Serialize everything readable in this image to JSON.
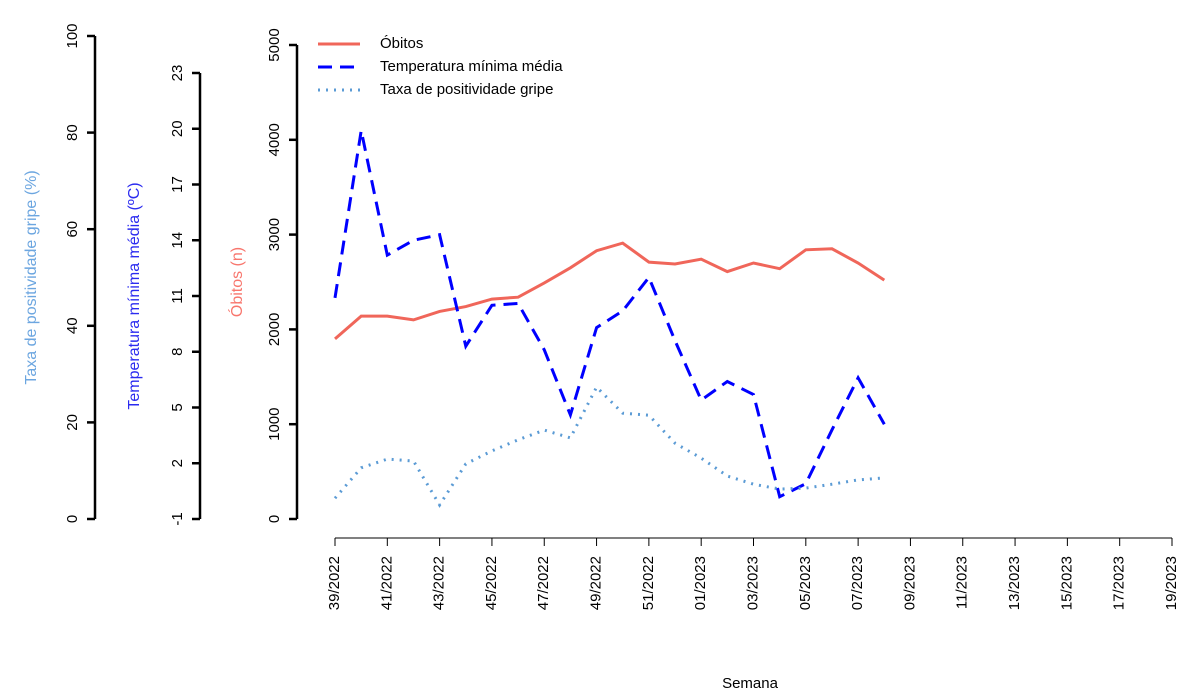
{
  "chart_data": {
    "type": "line",
    "x_label": "Semana",
    "categories": [
      "39/2022",
      null,
      "41/2022",
      null,
      "43/2022",
      null,
      "45/2022",
      null,
      "47/2022",
      null,
      "49/2022",
      null,
      "51/2022",
      null,
      "01/2023",
      null,
      "03/2023",
      null,
      "05/2023",
      null,
      "07/2023",
      null,
      "09/2023",
      null,
      "11/2023",
      null,
      "13/2023",
      null,
      "15/2023",
      null,
      "17/2023",
      null,
      "19/2023"
    ],
    "axes": [
      {
        "label": "Taxa de positividade gripe (%)",
        "color": "#6CA6E0",
        "ylim": [
          0,
          100
        ],
        "yticks": [
          0,
          20,
          40,
          60,
          80,
          100
        ]
      },
      {
        "label": "Temperatura mínima média (ºC)",
        "color": "#2B2BF0",
        "ylim": [
          -1,
          23
        ],
        "yticks": [
          -1,
          2,
          5,
          8,
          11,
          14,
          17,
          20,
          23
        ]
      },
      {
        "label": "Óbitos (n)",
        "color": "#F8766D",
        "ylim": [
          0,
          5000
        ],
        "yticks": [
          0,
          1000,
          2000,
          3000,
          4000,
          5000
        ]
      }
    ],
    "legend": "top-left",
    "series": [
      {
        "name": "Óbitos",
        "color": "#F0665A",
        "dash": "solid",
        "axis": 2,
        "values": [
          1900,
          2140,
          2140,
          2100,
          2190,
          2240,
          2320,
          2340,
          2490,
          2650,
          2830,
          2910,
          2710,
          2690,
          2740,
          2610,
          2700,
          2640,
          2840,
          2850,
          2700,
          2520,
          null,
          null,
          null,
          null,
          null,
          null,
          null,
          null,
          null,
          null,
          null
        ]
      },
      {
        "name": "Temperatura mínima média",
        "color": "#0000FF",
        "dash": "dashed",
        "axis": 1,
        "values": [
          10.9,
          19.9,
          13.2,
          14.0,
          14.3,
          8.3,
          10.5,
          10.6,
          8.1,
          4.6,
          9.3,
          10.2,
          12.0,
          8.6,
          5.4,
          6.4,
          5.7,
          0.2,
          0.9,
          3.8,
          6.6,
          4.1,
          null,
          null,
          null,
          null,
          null,
          null,
          null,
          null,
          null,
          null,
          null
        ]
      },
      {
        "name": "Taxa de positividade gripe",
        "color": "#5B9BD5",
        "dash": "dotted",
        "axis": 0,
        "values": [
          4.3,
          10.6,
          12.4,
          12.0,
          2.9,
          11.4,
          14.1,
          16.4,
          18.4,
          16.8,
          27.3,
          21.9,
          21.5,
          15.7,
          12.6,
          8.9,
          7.2,
          6.2,
          6.4,
          7.2,
          8.1,
          8.5,
          null,
          null,
          null,
          null,
          null,
          null,
          null,
          null,
          null,
          null,
          null
        ]
      }
    ]
  }
}
